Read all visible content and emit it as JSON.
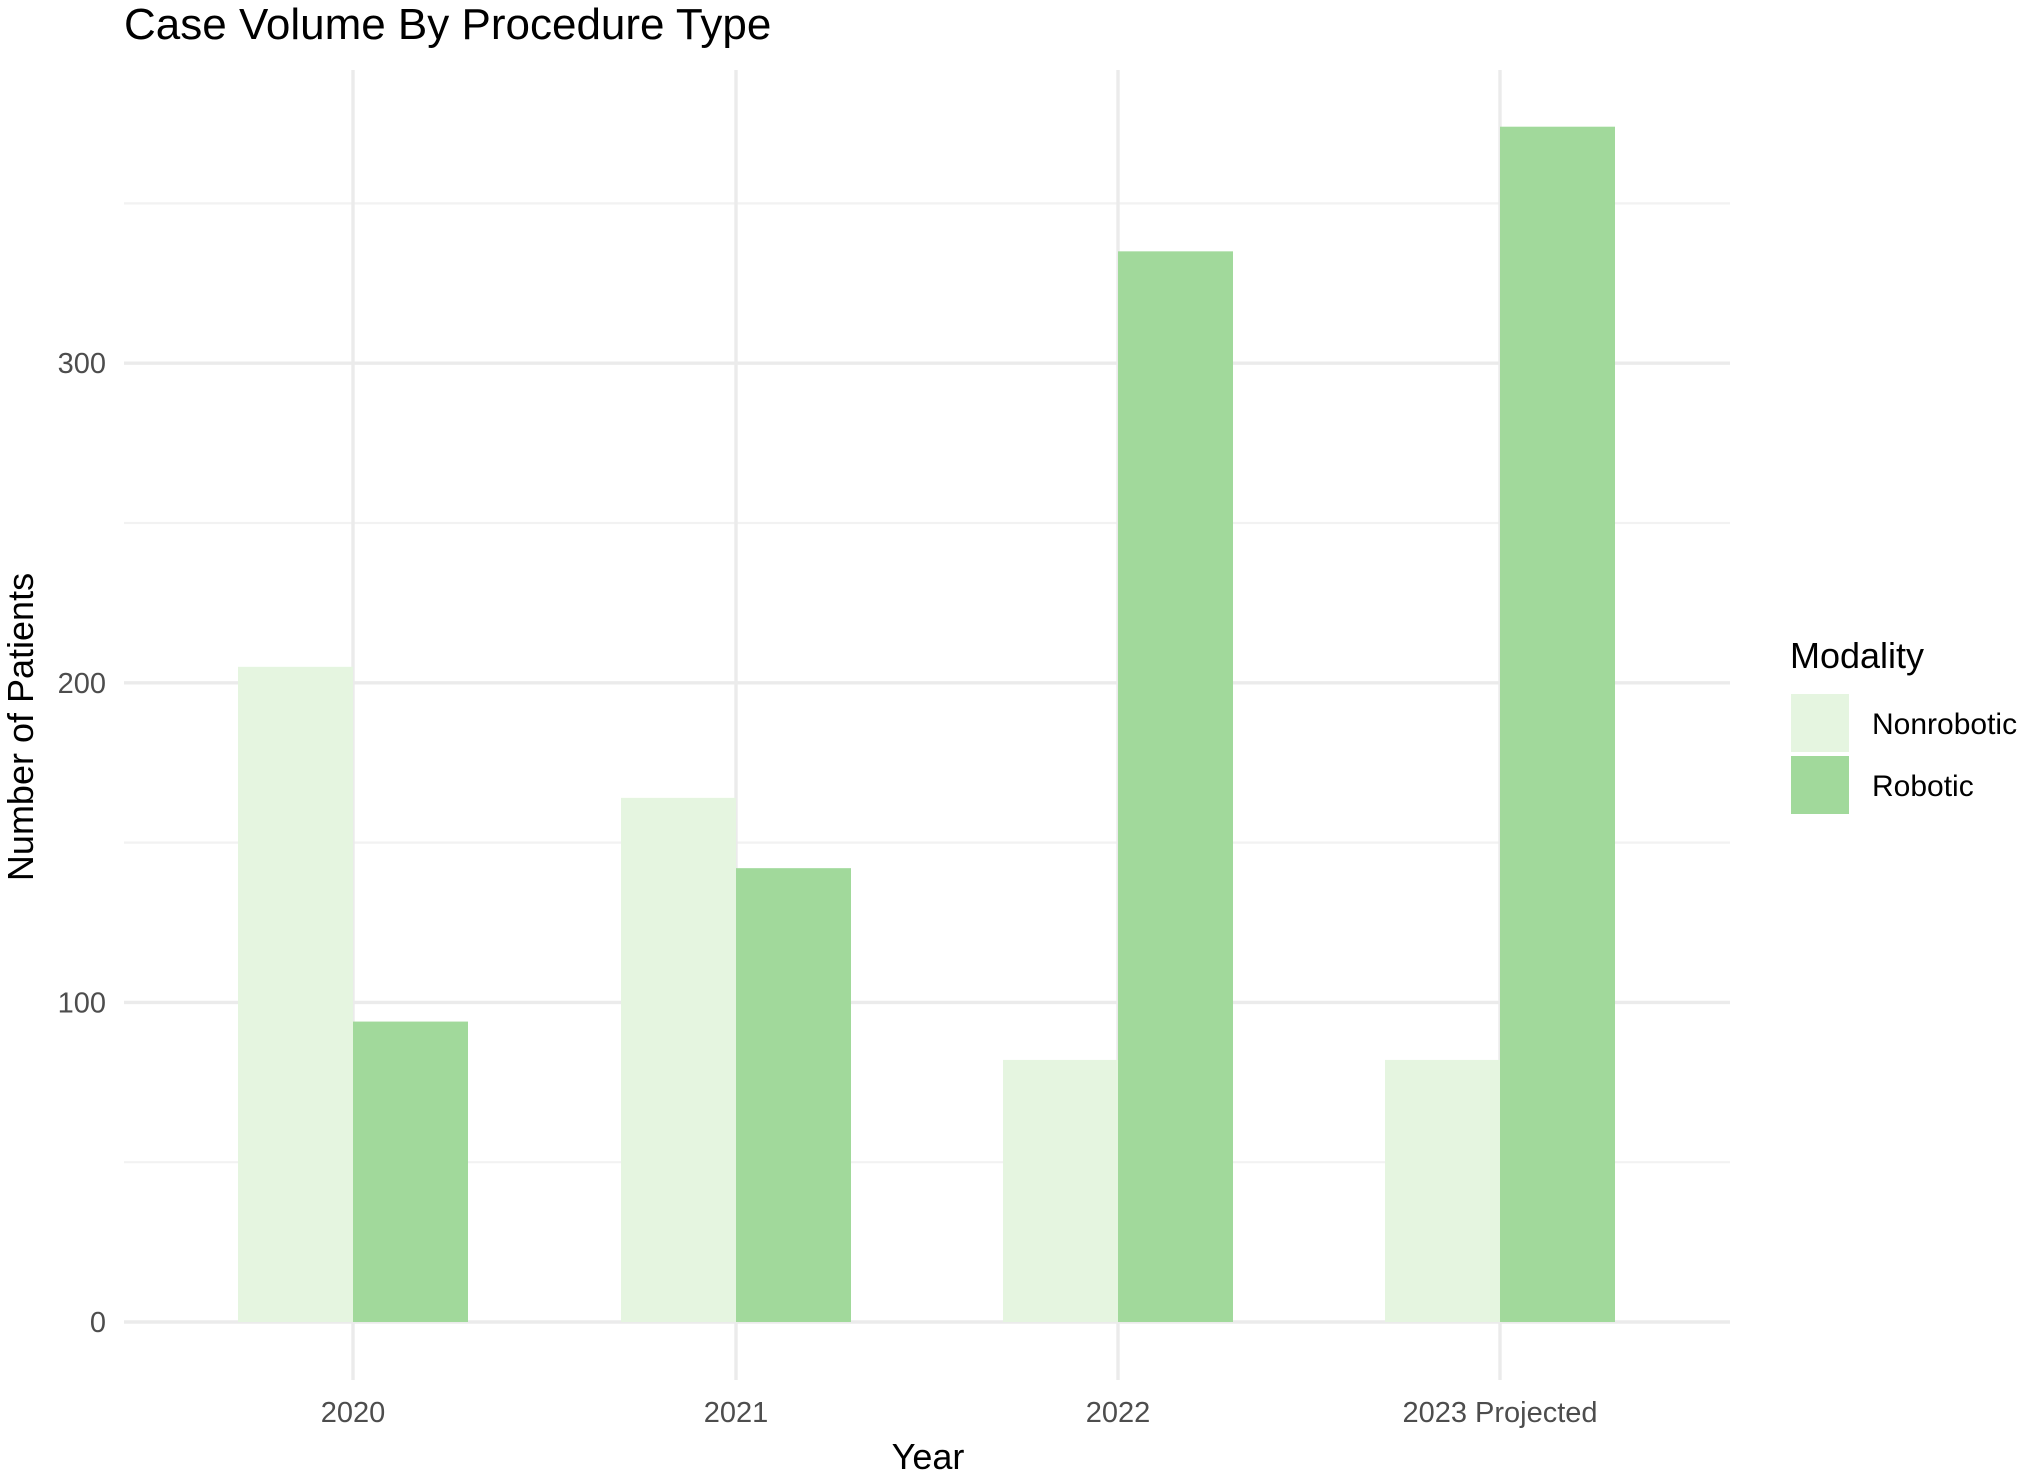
{
  "chart_data": {
    "type": "bar",
    "title": "Case Volume By Procedure Type",
    "xlabel": "Year",
    "ylabel": "Number of Patients",
    "categories": [
      "2020",
      "2021",
      "2022",
      "2023 Projected"
    ],
    "series": [
      {
        "name": "Nonrobotic",
        "values": [
          205,
          164,
          82,
          82
        ],
        "color": "#e5f5e0"
      },
      {
        "name": "Robotic",
        "values": [
          94,
          142,
          335,
          374
        ],
        "color": "#a1d99b"
      }
    ],
    "ylim": [
      0,
      390
    ],
    "yticks": [
      0,
      100,
      200,
      300
    ],
    "grid": true,
    "legend": {
      "title": "Modality",
      "placement": "right"
    }
  }
}
